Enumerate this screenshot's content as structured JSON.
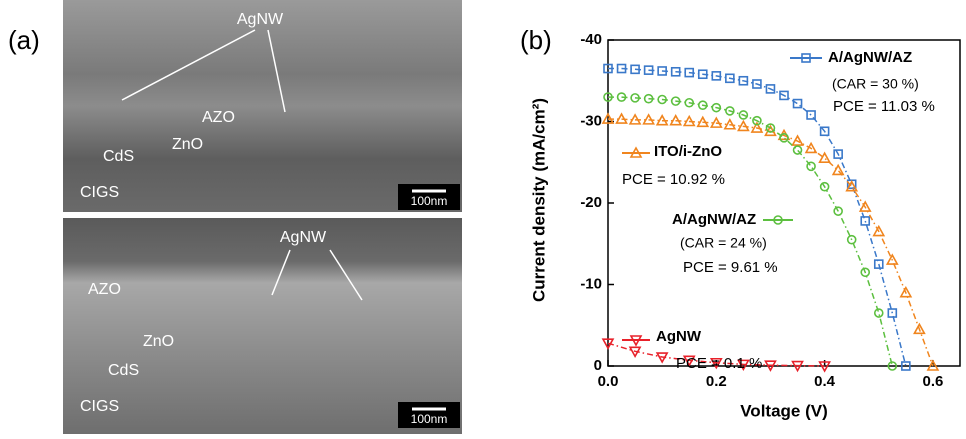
{
  "panel_a": {
    "label": "(a)",
    "top_image": {
      "labels": [
        "AgNW",
        "AZO",
        "ZnO",
        "CdS",
        "CIGS"
      ],
      "scale_bar": "100nm"
    },
    "bottom_image": {
      "labels": [
        "AgNW",
        "AZO",
        "ZnO",
        "CdS",
        "CIGS"
      ],
      "scale_bar": "100nm"
    }
  },
  "chart_data": {
    "type": "line",
    "panel_label": "(b)",
    "x_label": "Voltage (V)",
    "y_label": "Current density (mA/cm²)",
    "xlim": [
      0,
      0.65
    ],
    "xticks": [
      {
        "value": 0,
        "label": "0.0"
      },
      0.2,
      0.4,
      0.6
    ],
    "ylim": [
      0,
      -40
    ],
    "yticks": [
      0,
      -10,
      -20,
      -30,
      -40
    ],
    "series": [
      {
        "name": "A/AgNW/AZ",
        "notes": [
          "(CAR = 30 %)",
          "PCE = 11.03 %"
        ],
        "color": "#3a78c9",
        "marker": "square",
        "x": [
          0,
          0.025,
          0.05,
          0.075,
          0.1,
          0.125,
          0.15,
          0.175,
          0.2,
          0.225,
          0.25,
          0.275,
          0.3,
          0.325,
          0.35,
          0.375,
          0.4,
          0.425,
          0.45,
          0.475,
          0.5,
          0.525,
          0.55
        ],
        "values": [
          -36.5,
          -36.5,
          -36.4,
          -36.3,
          -36.2,
          -36.1,
          -36,
          -35.8,
          -35.6,
          -35.3,
          -35,
          -34.6,
          -34,
          -33.2,
          -32.2,
          -30.8,
          -28.8,
          -26,
          -22.3,
          -17.8,
          -12.5,
          -6.5,
          0
        ]
      },
      {
        "name": "ITO/i-ZnO",
        "notes": [
          "PCE = 10.92 %"
        ],
        "color": "#f0851e",
        "marker": "triangle-up",
        "x": [
          0,
          0.025,
          0.05,
          0.075,
          0.1,
          0.125,
          0.15,
          0.175,
          0.2,
          0.225,
          0.25,
          0.275,
          0.3,
          0.325,
          0.35,
          0.375,
          0.4,
          0.425,
          0.45,
          0.475,
          0.5,
          0.525,
          0.55,
          0.575,
          0.6
        ],
        "values": [
          -30.3,
          -30.3,
          -30.2,
          -30.2,
          -30.1,
          -30.1,
          -30,
          -29.9,
          -29.8,
          -29.6,
          -29.4,
          -29.2,
          -28.8,
          -28.3,
          -27.6,
          -26.7,
          -25.5,
          -24,
          -22,
          -19.5,
          -16.5,
          -13,
          -9,
          -4.5,
          0
        ]
      },
      {
        "name": "A/AgNW/AZ",
        "notes": [
          "(CAR = 24 %)",
          "PCE = 9.61 %"
        ],
        "color": "#5cbf3f",
        "marker": "circle",
        "x": [
          0,
          0.025,
          0.05,
          0.075,
          0.1,
          0.125,
          0.15,
          0.175,
          0.2,
          0.225,
          0.25,
          0.275,
          0.3,
          0.325,
          0.35,
          0.375,
          0.4,
          0.425,
          0.45,
          0.475,
          0.5,
          0.525
        ],
        "values": [
          -33,
          -33,
          -32.9,
          -32.8,
          -32.7,
          -32.5,
          -32.3,
          -32,
          -31.7,
          -31.3,
          -30.8,
          -30.1,
          -29.2,
          -28,
          -26.5,
          -24.5,
          -22,
          -19,
          -15.5,
          -11.5,
          -6.5,
          0
        ]
      },
      {
        "name": "AgNW",
        "notes": [
          "PCE = 0.1 %"
        ],
        "color": "#e8212a",
        "marker": "triangle-down",
        "x": [
          0,
          0.05,
          0.1,
          0.15,
          0.2,
          0.25,
          0.3,
          0.35,
          0.4
        ],
        "values": [
          -2.8,
          -1.8,
          -1.1,
          -0.7,
          -0.4,
          -0.2,
          -0.1,
          -0.05,
          0
        ]
      }
    ]
  }
}
